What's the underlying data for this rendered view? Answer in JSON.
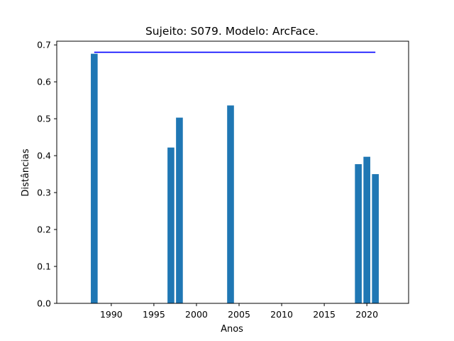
{
  "chart_data": {
    "type": "bar",
    "title": "Sujeito: S079. Modelo: ArcFace.",
    "xlabel": "Anos",
    "ylabel": "Distâncias",
    "x": [
      1988,
      1997,
      1998,
      2004,
      2019,
      2020,
      2021
    ],
    "values": [
      0.676,
      0.422,
      0.503,
      0.536,
      0.377,
      0.397,
      0.35
    ],
    "xlim": [
      1983.6,
      2024.9
    ],
    "ylim": [
      0,
      0.71
    ],
    "xticks": [
      1990,
      1995,
      2000,
      2005,
      2010,
      2015,
      2020
    ],
    "yticks": [
      0.0,
      0.1,
      0.2,
      0.3,
      0.4,
      0.5,
      0.6,
      0.7
    ],
    "bar_color": "#1f77b4",
    "threshold_line": {
      "y": 0.68,
      "x_start": 1988,
      "x_end": 2021,
      "color": "#0000ff"
    },
    "grid": false
  }
}
